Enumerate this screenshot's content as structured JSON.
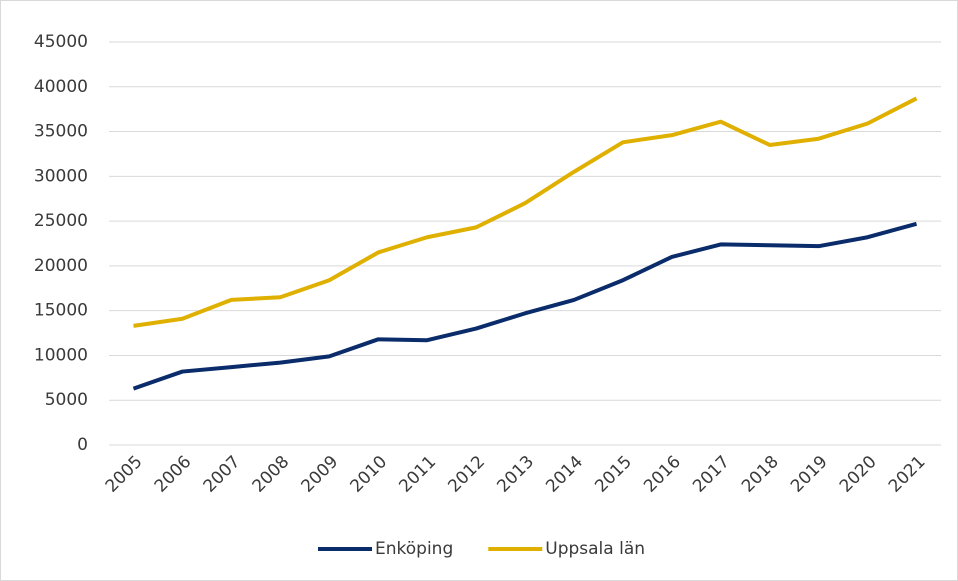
{
  "chart_data": {
    "type": "line",
    "x": [
      "2005",
      "2006",
      "2007",
      "2008",
      "2009",
      "2010",
      "2011",
      "2012",
      "2013",
      "2014",
      "2015",
      "2016",
      "2017",
      "2018",
      "2019",
      "2020",
      "2021"
    ],
    "series": [
      {
        "name": "Enköping",
        "color": "#0b2c6b",
        "values": [
          6300,
          8200,
          8700,
          9200,
          9900,
          11800,
          11700,
          13000,
          14700,
          16200,
          18400,
          21000,
          22400,
          22300,
          22200,
          23200,
          24700
        ]
      },
      {
        "name": "Uppsala län",
        "color": "#e0b000",
        "values": [
          13300,
          14100,
          16200,
          16500,
          18400,
          21500,
          23200,
          24300,
          27000,
          30500,
          33800,
          34600,
          36100,
          33500,
          34200,
          35900,
          38700
        ]
      }
    ],
    "ylim": [
      0,
      45000
    ],
    "yticks": [
      0,
      5000,
      10000,
      15000,
      20000,
      25000,
      30000,
      35000,
      40000,
      45000
    ],
    "grid": true,
    "legend": "bottom"
  }
}
